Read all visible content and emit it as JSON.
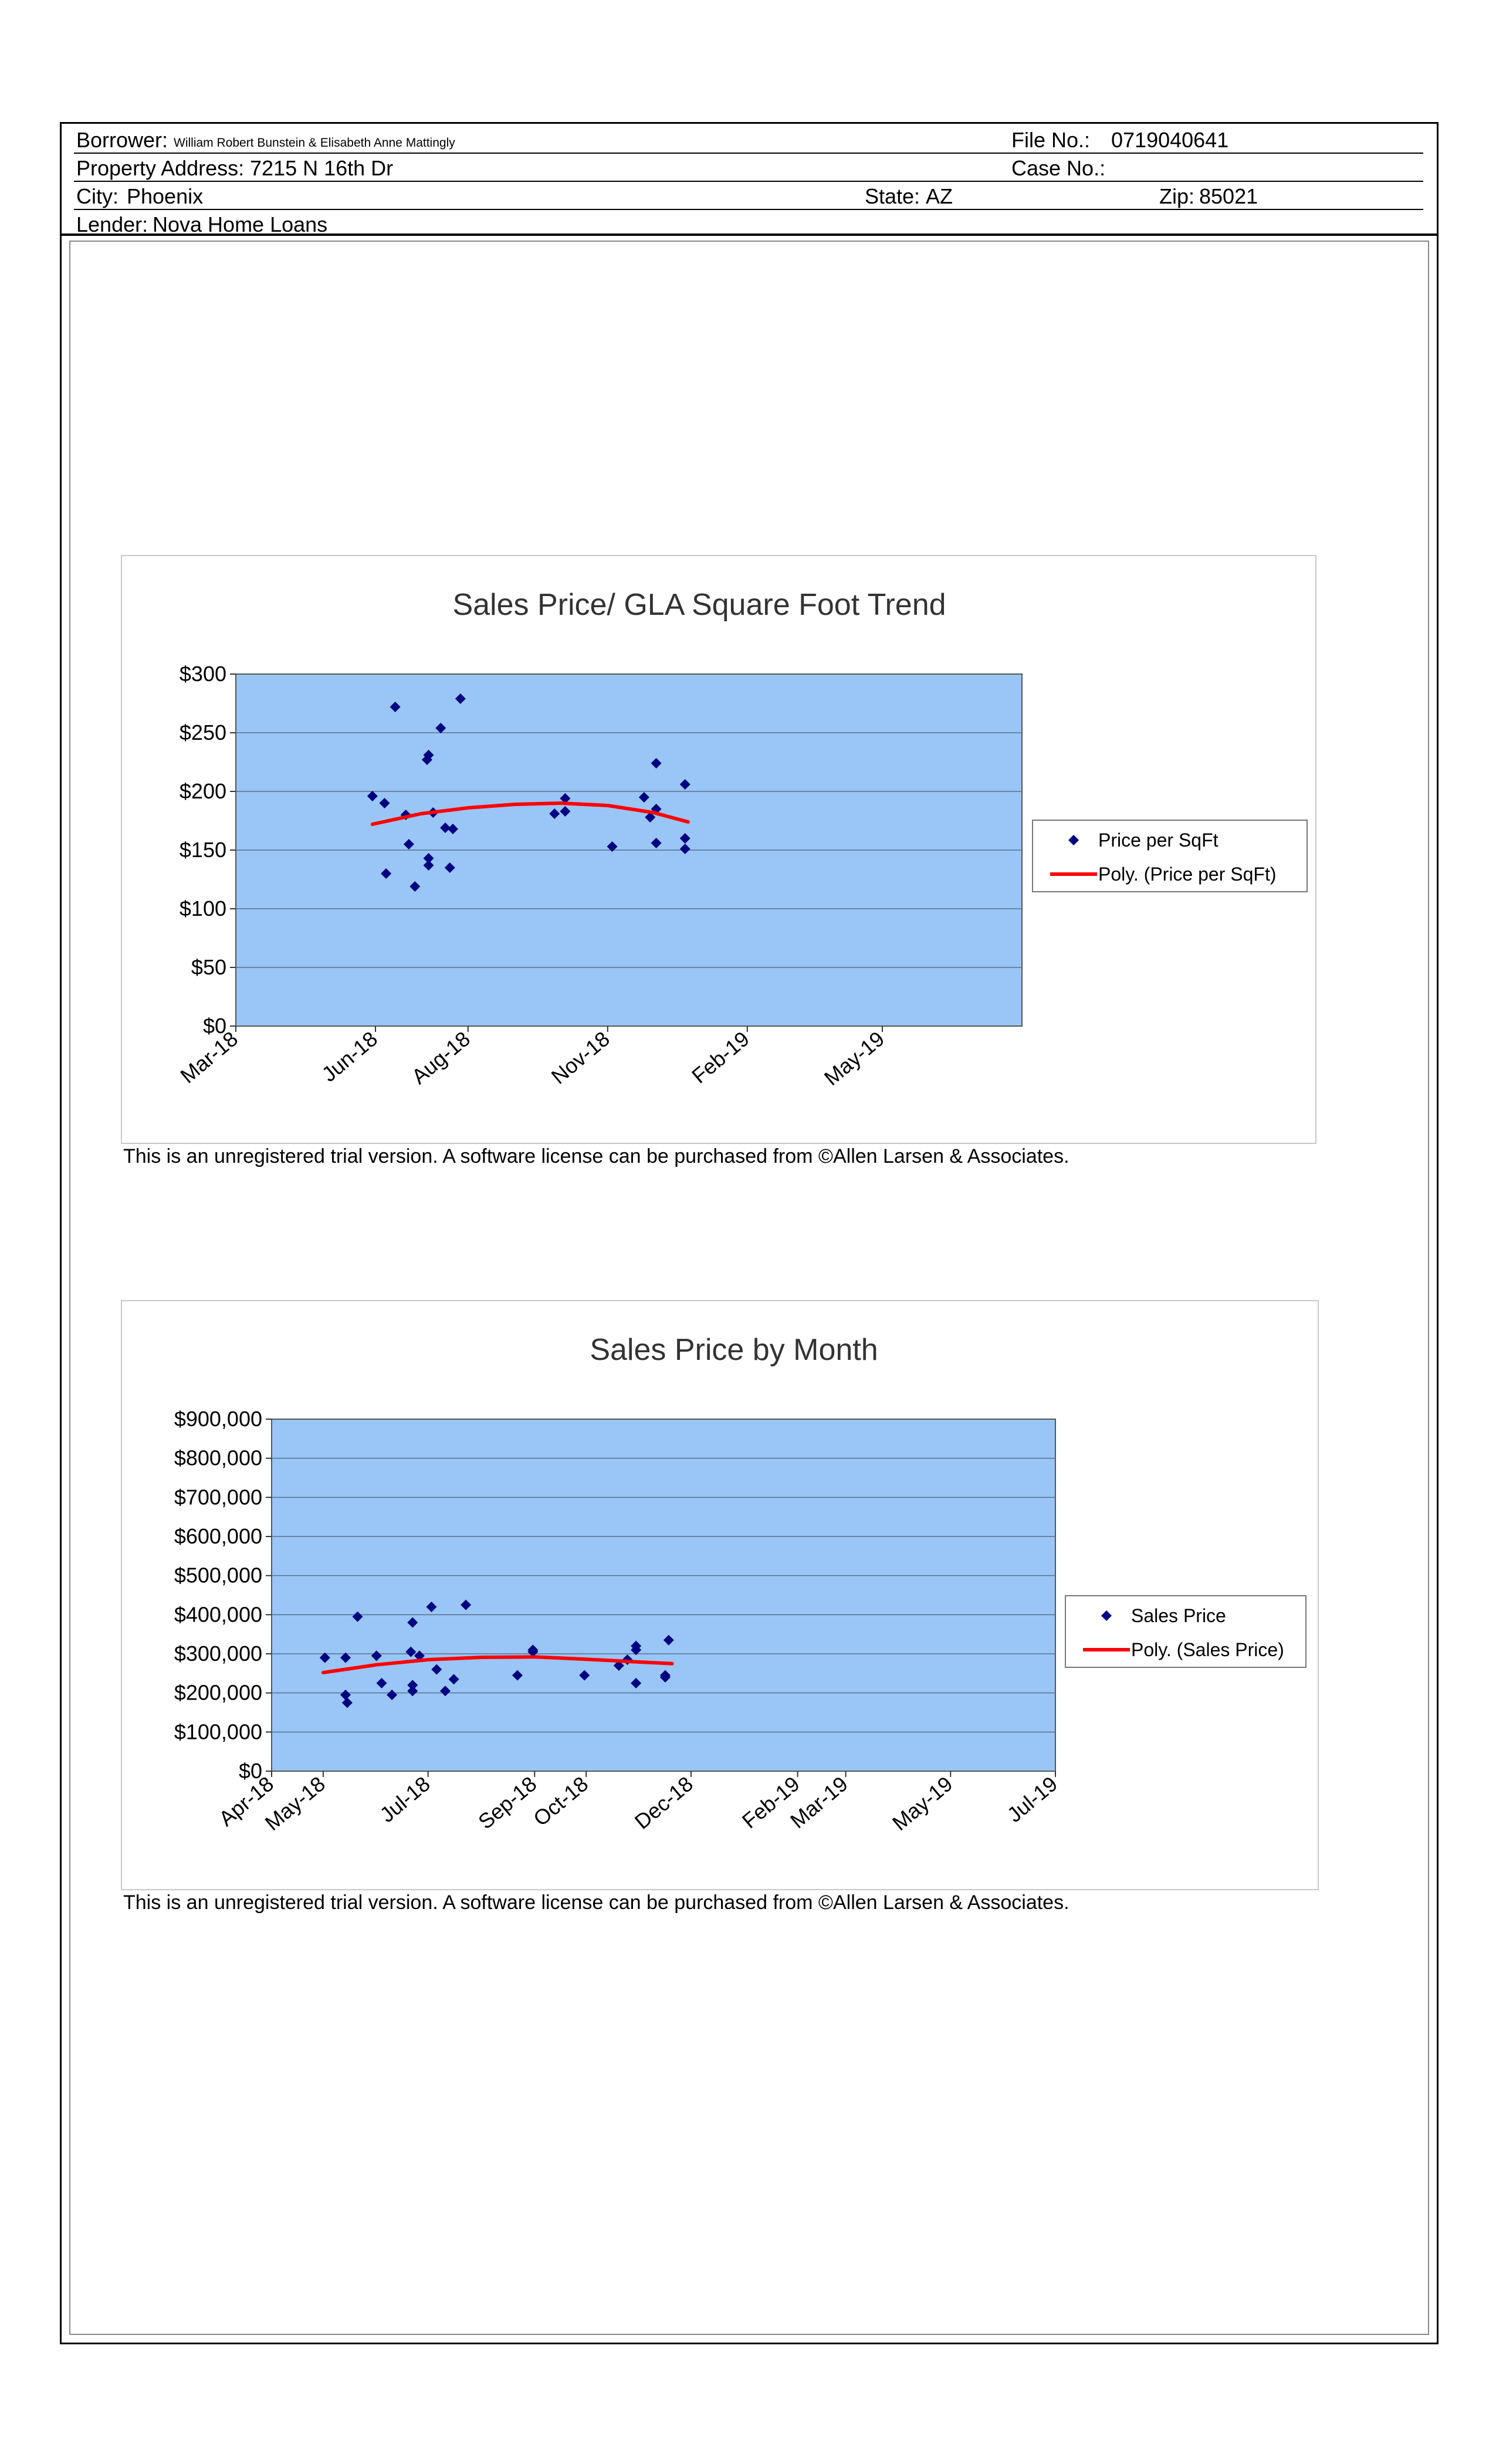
{
  "header": {
    "borrower_label": "Borrower:",
    "borrower_value": "William Robert Bunstein & Elisabeth Anne Mattingly",
    "file_no_label": "File No.:",
    "file_no_value": "0719040641",
    "property_label": "Property Address:",
    "property_value": "7215 N 16th Dr",
    "case_no_label": "Case No.:",
    "case_no_value": "",
    "city_label": "City:",
    "city_value": "Phoenix",
    "state_label": "State:",
    "state_value": "AZ",
    "zip_label": "Zip:",
    "zip_value": "85021",
    "lender_label": "Lender:",
    "lender_value": "Nova Home Loans"
  },
  "trial_notice": "This is an unregistered trial version. A software license can be purchased from ©Allen Larsen & Associates.",
  "colors": {
    "plot_bg": "#99c6f7",
    "point": "#000080",
    "trend": "#ff0000",
    "gridline": "#5a6f8a"
  },
  "chart_data": [
    {
      "type": "scatter",
      "title": "Sales Price/ GLA Square Foot Trend",
      "xlabel": "",
      "ylabel": "",
      "x_axis": "date",
      "xlim": [
        "2018-03-01",
        "2019-08-01"
      ],
      "ylim": [
        0,
        300
      ],
      "y_ticks": [
        0,
        50,
        100,
        150,
        200,
        250,
        300
      ],
      "y_tick_labels": [
        "$0",
        "$50",
        "$100",
        "$150",
        "$200",
        "$250",
        "$300"
      ],
      "x_ticks": [
        "2018-03-01",
        "2018-06-01",
        "2018-08-01",
        "2018-11-01",
        "2019-02-01",
        "2019-05-01"
      ],
      "x_tick_labels": [
        "Mar-18",
        "Jun-18",
        "Aug-18",
        "Nov-18",
        "Feb-19",
        "May-19"
      ],
      "grid": true,
      "legend_position": "right",
      "series": [
        {
          "name": "Price per SqFt",
          "kind": "points",
          "points": [
            {
              "x": "2018-05-30",
              "y": 196
            },
            {
              "x": "2018-06-07",
              "y": 190
            },
            {
              "x": "2018-06-08",
              "y": 130
            },
            {
              "x": "2018-06-14",
              "y": 272
            },
            {
              "x": "2018-06-21",
              "y": 180
            },
            {
              "x": "2018-06-23",
              "y": 155
            },
            {
              "x": "2018-06-27",
              "y": 119
            },
            {
              "x": "2018-07-05",
              "y": 227
            },
            {
              "x": "2018-07-06",
              "y": 231
            },
            {
              "x": "2018-07-06",
              "y": 143
            },
            {
              "x": "2018-07-06",
              "y": 137
            },
            {
              "x": "2018-07-09",
              "y": 182
            },
            {
              "x": "2018-07-14",
              "y": 254
            },
            {
              "x": "2018-07-17",
              "y": 169
            },
            {
              "x": "2018-07-20",
              "y": 135
            },
            {
              "x": "2018-07-22",
              "y": 168
            },
            {
              "x": "2018-07-27",
              "y": 279
            },
            {
              "x": "2018-09-27",
              "y": 181
            },
            {
              "x": "2018-10-04",
              "y": 194
            },
            {
              "x": "2018-10-04",
              "y": 183
            },
            {
              "x": "2018-11-04",
              "y": 153
            },
            {
              "x": "2018-11-25",
              "y": 195
            },
            {
              "x": "2018-11-29",
              "y": 178
            },
            {
              "x": "2018-12-03",
              "y": 224
            },
            {
              "x": "2018-12-03",
              "y": 185
            },
            {
              "x": "2018-12-03",
              "y": 156
            },
            {
              "x": "2018-12-22",
              "y": 206
            },
            {
              "x": "2018-12-22",
              "y": 160
            },
            {
              "x": "2018-12-22",
              "y": 151
            }
          ]
        },
        {
          "name": "Poly. (Price per SqFt)",
          "kind": "trend",
          "points": [
            {
              "x": "2018-05-30",
              "y": 172
            },
            {
              "x": "2018-07-01",
              "y": 181
            },
            {
              "x": "2018-08-01",
              "y": 186
            },
            {
              "x": "2018-09-01",
              "y": 189
            },
            {
              "x": "2018-10-01",
              "y": 190
            },
            {
              "x": "2018-11-01",
              "y": 188
            },
            {
              "x": "2018-12-01",
              "y": 182
            },
            {
              "x": "2018-12-24",
              "y": 174
            }
          ]
        }
      ]
    },
    {
      "type": "scatter",
      "title": "Sales Price by Month",
      "xlabel": "",
      "ylabel": "",
      "x_axis": "date",
      "xlim": [
        "2018-04-01",
        "2019-07-01"
      ],
      "ylim": [
        0,
        900000
      ],
      "y_ticks": [
        0,
        100000,
        200000,
        300000,
        400000,
        500000,
        600000,
        700000,
        800000,
        900000
      ],
      "y_tick_labels": [
        "$0",
        "$100,000",
        "$200,000",
        "$300,000",
        "$400,000",
        "$500,000",
        "$600,000",
        "$700,000",
        "$800,000",
        "$900,000"
      ],
      "x_ticks": [
        "2018-04-01",
        "2018-05-01",
        "2018-07-01",
        "2018-09-01",
        "2018-10-01",
        "2018-12-01",
        "2019-02-01",
        "2019-03-01",
        "2019-05-01",
        "2019-07-01"
      ],
      "x_tick_labels": [
        "Apr-18",
        "May-18",
        "Jul-18",
        "Sep-18",
        "Oct-18",
        "Dec-18",
        "Feb-19",
        "Mar-19",
        "May-19",
        "Jul-19"
      ],
      "grid": true,
      "legend_position": "right",
      "series": [
        {
          "name": "Sales Price",
          "kind": "points",
          "points": [
            {
              "x": "2018-05-02",
              "y": 290000
            },
            {
              "x": "2018-05-14",
              "y": 290000
            },
            {
              "x": "2018-05-14",
              "y": 195000
            },
            {
              "x": "2018-05-15",
              "y": 175000
            },
            {
              "x": "2018-05-21",
              "y": 395000
            },
            {
              "x": "2018-06-01",
              "y": 295000
            },
            {
              "x": "2018-06-04",
              "y": 225000
            },
            {
              "x": "2018-06-10",
              "y": 195000
            },
            {
              "x": "2018-06-21",
              "y": 305000
            },
            {
              "x": "2018-06-22",
              "y": 380000
            },
            {
              "x": "2018-06-22",
              "y": 220000
            },
            {
              "x": "2018-06-22",
              "y": 205000
            },
            {
              "x": "2018-06-26",
              "y": 295000
            },
            {
              "x": "2018-07-03",
              "y": 420000
            },
            {
              "x": "2018-07-06",
              "y": 260000
            },
            {
              "x": "2018-07-11",
              "y": 205000
            },
            {
              "x": "2018-07-16",
              "y": 235000
            },
            {
              "x": "2018-07-23",
              "y": 425000
            },
            {
              "x": "2018-08-22",
              "y": 245000
            },
            {
              "x": "2018-08-31",
              "y": 310000
            },
            {
              "x": "2018-08-31",
              "y": 305000
            },
            {
              "x": "2018-09-30",
              "y": 245000
            },
            {
              "x": "2018-10-20",
              "y": 270000
            },
            {
              "x": "2018-10-25",
              "y": 285000
            },
            {
              "x": "2018-10-30",
              "y": 320000
            },
            {
              "x": "2018-10-30",
              "y": 310000
            },
            {
              "x": "2018-10-30",
              "y": 225000
            },
            {
              "x": "2018-11-16",
              "y": 245000
            },
            {
              "x": "2018-11-16",
              "y": 240000
            },
            {
              "x": "2018-11-18",
              "y": 335000
            }
          ]
        },
        {
          "name": "Poly. (Sales Price)",
          "kind": "trend",
          "points": [
            {
              "x": "2018-05-01",
              "y": 252000
            },
            {
              "x": "2018-06-01",
              "y": 272000
            },
            {
              "x": "2018-07-01",
              "y": 285000
            },
            {
              "x": "2018-08-01",
              "y": 291000
            },
            {
              "x": "2018-09-01",
              "y": 292000
            },
            {
              "x": "2018-10-01",
              "y": 286000
            },
            {
              "x": "2018-11-01",
              "y": 279000
            },
            {
              "x": "2018-11-20",
              "y": 275000
            }
          ]
        }
      ]
    }
  ]
}
